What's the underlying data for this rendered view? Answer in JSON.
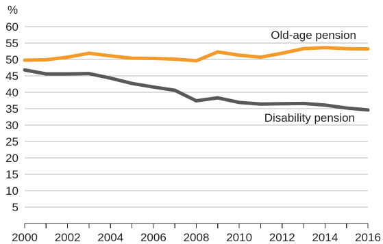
{
  "chart_data": {
    "type": "line",
    "ylabel": "%",
    "ylim": [
      0,
      60
    ],
    "yticks": [
      5,
      10,
      15,
      20,
      25,
      30,
      35,
      40,
      45,
      50,
      55,
      60
    ],
    "xlim": [
      2000,
      2016
    ],
    "xticks": [
      2000,
      2002,
      2004,
      2006,
      2008,
      2010,
      2012,
      2014,
      2016
    ],
    "grid": true,
    "x": [
      2000,
      2001,
      2002,
      2003,
      2004,
      2005,
      2006,
      2007,
      2008,
      2009,
      2010,
      2011,
      2012,
      2013,
      2014,
      2015,
      2016
    ],
    "series": [
      {
        "name": "Old-age pension",
        "color": "#f39a2b",
        "values": [
          49.8,
          49.9,
          50.7,
          51.9,
          51.1,
          50.4,
          50.3,
          50.1,
          49.6,
          52.3,
          51.3,
          50.7,
          51.9,
          53.3,
          53.6,
          53.3,
          53.2
        ]
      },
      {
        "name": "Disability pension",
        "color": "#595959",
        "values": [
          46.8,
          45.6,
          45.6,
          45.7,
          44.3,
          42.7,
          41.6,
          40.6,
          37.4,
          38.3,
          36.9,
          36.4,
          36.5,
          36.6,
          36.1,
          35.2,
          34.6
        ]
      }
    ]
  }
}
